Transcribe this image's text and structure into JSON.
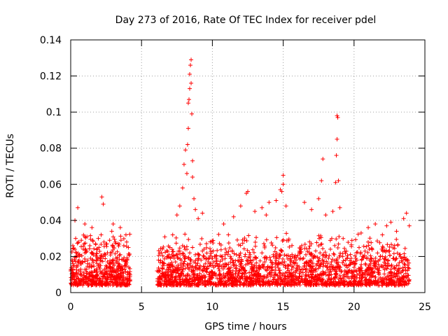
{
  "chart_data": {
    "type": "scatter",
    "title": "Day 273 of 2016, Rate Of TEC Index for receiver pdel",
    "xlabel": "GPS time / hours",
    "ylabel": "ROTI / TECUs",
    "xlim": [
      0,
      25
    ],
    "ylim": [
      0,
      0.14
    ],
    "xticks": [
      0,
      5,
      10,
      15,
      20,
      25
    ],
    "xtick_labels": [
      "0",
      "5",
      "10",
      "15",
      "20",
      "25"
    ],
    "yticks": [
      0,
      0.02,
      0.04,
      0.06,
      0.08,
      0.1,
      0.12,
      0.14
    ],
    "ytick_labels": [
      "0",
      "0.02",
      "0.04",
      "0.06",
      "0.08",
      "0.1",
      "0.12",
      "0.14"
    ],
    "grid": true,
    "marker": "+",
    "color": "#ff0000",
    "data_gap": [
      4.2,
      6.1
    ],
    "series": [
      {
        "name": "ROTI",
        "x": [
          0.0,
          0.1,
          0.2,
          0.3,
          0.4,
          0.5,
          0.6,
          0.7,
          0.8,
          0.9,
          1.0,
          1.1,
          1.2,
          1.3,
          1.4,
          1.5,
          1.6,
          1.7,
          1.8,
          1.9,
          2.0,
          2.1,
          2.2,
          2.3,
          2.4,
          2.5,
          2.6,
          2.7,
          2.8,
          2.9,
          3.0,
          3.1,
          3.2,
          3.3,
          3.4,
          3.5,
          3.6,
          3.7,
          3.8,
          3.9,
          4.0,
          4.1,
          0.05,
          0.15,
          0.25,
          0.35,
          0.45,
          0.55,
          0.65,
          0.75,
          0.85,
          0.95,
          1.05,
          1.15,
          1.25,
          1.35,
          1.45,
          1.55,
          1.65,
          1.75,
          1.85,
          1.95,
          2.05,
          2.15,
          2.25,
          2.35,
          2.45,
          2.55,
          2.65,
          2.75,
          2.85,
          2.95,
          3.05,
          3.15,
          3.25,
          3.35,
          3.45,
          3.55,
          3.65,
          3.75,
          3.85,
          3.95,
          4.05,
          0.3,
          0.5,
          1.0,
          1.5,
          2.2,
          2.3,
          2.9,
          3.0,
          3.5,
          3.9,
          6.1,
          6.2,
          6.3,
          6.4,
          6.5,
          6.6,
          6.7,
          6.8,
          6.9,
          7.0,
          7.1,
          7.2,
          7.3,
          7.4,
          7.5,
          7.6,
          7.7,
          7.8,
          7.9,
          8.0,
          8.1,
          8.2,
          8.3,
          8.4,
          8.5,
          8.6,
          8.7,
          8.8,
          8.9,
          9.0,
          9.1,
          9.2,
          9.3,
          9.4,
          9.5,
          9.6,
          9.7,
          9.8,
          9.9,
          10.0,
          6.15,
          6.35,
          6.55,
          6.75,
          6.95,
          7.15,
          7.35,
          7.55,
          7.75,
          7.95,
          8.15,
          8.35,
          8.55,
          8.75,
          8.95,
          9.15,
          9.35,
          9.55,
          9.75,
          9.95,
          7.2,
          7.5,
          7.7,
          7.9,
          8.0,
          8.1,
          8.2,
          8.25,
          8.3,
          8.3,
          8.35,
          8.4,
          8.4,
          8.45,
          8.5,
          8.5,
          8.55,
          8.6,
          8.6,
          8.7,
          8.8,
          9.0,
          9.3,
          10.1,
          10.3,
          10.5,
          10.7,
          10.9,
          11.1,
          11.3,
          11.5,
          11.7,
          11.9,
          12.1,
          12.3,
          12.5,
          12.7,
          12.9,
          13.1,
          13.3,
          13.5,
          13.7,
          13.9,
          14.1,
          14.3,
          14.5,
          14.7,
          14.9,
          15.1,
          15.3,
          15.5,
          15.7,
          15.9,
          10.2,
          10.6,
          11.0,
          11.4,
          11.8,
          12.2,
          12.6,
          13.0,
          13.4,
          13.8,
          14.2,
          14.6,
          15.0,
          15.4,
          15.8,
          10.8,
          11.5,
          12.0,
          12.4,
          12.5,
          13.0,
          13.5,
          13.8,
          14.0,
          14.5,
          14.8,
          14.9,
          15.0,
          15.0,
          15.2,
          16.0,
          16.2,
          16.4,
          16.6,
          16.8,
          17.0,
          17.2,
          17.4,
          17.6,
          17.8,
          18.0,
          18.2,
          18.4,
          18.6,
          18.8,
          19.0,
          19.2,
          19.4,
          19.6,
          19.8,
          16.1,
          16.5,
          16.9,
          17.3,
          17.7,
          18.1,
          18.5,
          18.9,
          19.3,
          19.7,
          16.5,
          17.0,
          17.5,
          17.7,
          17.8,
          18.0,
          18.5,
          18.7,
          18.75,
          18.8,
          18.8,
          18.85,
          18.9,
          19.0,
          20.0,
          20.2,
          20.4,
          20.6,
          20.8,
          21.0,
          21.2,
          21.4,
          21.6,
          21.8,
          22.0,
          22.2,
          22.4,
          22.6,
          22.8,
          23.0,
          23.2,
          23.4,
          23.6,
          23.8,
          20.1,
          20.5,
          20.9,
          21.3,
          21.7,
          22.1,
          22.5,
          22.9,
          23.3,
          23.7,
          20.5,
          21.0,
          21.5,
          22.0,
          22.3,
          22.6,
          23.0,
          23.5,
          23.7,
          23.9
        ],
        "y": [
          0.012,
          0.018,
          0.01,
          0.024,
          0.015,
          0.008,
          0.02,
          0.013,
          0.017,
          0.011,
          0.022,
          0.009,
          0.016,
          0.014,
          0.019,
          0.007,
          0.021,
          0.012,
          0.018,
          0.01,
          0.025,
          0.015,
          0.011,
          0.02,
          0.013,
          0.008,
          0.017,
          0.014,
          0.022,
          0.01,
          0.016,
          0.012,
          0.019,
          0.009,
          0.015,
          0.021,
          0.011,
          0.018,
          0.013,
          0.016,
          0.01,
          0.014,
          0.005,
          0.026,
          0.006,
          0.03,
          0.004,
          0.028,
          0.005,
          0.029,
          0.004,
          0.027,
          0.006,
          0.031,
          0.005,
          0.026,
          0.004,
          0.029,
          0.006,
          0.027,
          0.005,
          0.03,
          0.004,
          0.032,
          0.006,
          0.028,
          0.005,
          0.027,
          0.004,
          0.029,
          0.006,
          0.026,
          0.005,
          0.028,
          0.004,
          0.027,
          0.006,
          0.029,
          0.005,
          0.026,
          0.004,
          0.028,
          0.005,
          0.04,
          0.047,
          0.038,
          0.036,
          0.053,
          0.049,
          0.034,
          0.038,
          0.036,
          0.032,
          0.012,
          0.018,
          0.009,
          0.022,
          0.014,
          0.016,
          0.01,
          0.02,
          0.013,
          0.025,
          0.015,
          0.011,
          0.019,
          0.017,
          0.021,
          0.014,
          0.023,
          0.018,
          0.026,
          0.016,
          0.02,
          0.024,
          0.019,
          0.022,
          0.018,
          0.025,
          0.017,
          0.021,
          0.015,
          0.019,
          0.014,
          0.018,
          0.012,
          0.02,
          0.016,
          0.013,
          0.017,
          0.011,
          0.015,
          0.019,
          0.004,
          0.005,
          0.004,
          0.006,
          0.005,
          0.004,
          0.006,
          0.005,
          0.004,
          0.006,
          0.005,
          0.004,
          0.006,
          0.005,
          0.004,
          0.006,
          0.005,
          0.004,
          0.006,
          0.005,
          0.032,
          0.043,
          0.048,
          0.058,
          0.071,
          0.079,
          0.066,
          0.082,
          0.091,
          0.105,
          0.107,
          0.113,
          0.121,
          0.126,
          0.129,
          0.116,
          0.099,
          0.073,
          0.064,
          0.052,
          0.046,
          0.041,
          0.044,
          0.014,
          0.018,
          0.012,
          0.02,
          0.016,
          0.013,
          0.019,
          0.015,
          0.021,
          0.017,
          0.014,
          0.02,
          0.016,
          0.018,
          0.013,
          0.019,
          0.015,
          0.022,
          0.017,
          0.014,
          0.018,
          0.021,
          0.016,
          0.019,
          0.023,
          0.017,
          0.015,
          0.02,
          0.014,
          0.018,
          0.005,
          0.006,
          0.004,
          0.005,
          0.006,
          0.004,
          0.005,
          0.006,
          0.004,
          0.005,
          0.006,
          0.004,
          0.005,
          0.006,
          0.004,
          0.038,
          0.042,
          0.048,
          0.055,
          0.056,
          0.045,
          0.047,
          0.043,
          0.05,
          0.051,
          0.057,
          0.056,
          0.065,
          0.06,
          0.048,
          0.015,
          0.019,
          0.013,
          0.021,
          0.017,
          0.014,
          0.02,
          0.016,
          0.022,
          0.018,
          0.015,
          0.019,
          0.017,
          0.021,
          0.016,
          0.014,
          0.02,
          0.018,
          0.015,
          0.019,
          0.005,
          0.006,
          0.004,
          0.005,
          0.006,
          0.004,
          0.005,
          0.006,
          0.004,
          0.005,
          0.05,
          0.046,
          0.052,
          0.062,
          0.074,
          0.043,
          0.045,
          0.061,
          0.076,
          0.085,
          0.098,
          0.097,
          0.062,
          0.047,
          0.014,
          0.018,
          0.012,
          0.02,
          0.016,
          0.013,
          0.019,
          0.015,
          0.017,
          0.014,
          0.02,
          0.016,
          0.018,
          0.013,
          0.019,
          0.015,
          0.021,
          0.017,
          0.014,
          0.018,
          0.005,
          0.004,
          0.006,
          0.005,
          0.004,
          0.006,
          0.005,
          0.004,
          0.006,
          0.005,
          0.033,
          0.036,
          0.038,
          0.032,
          0.037,
          0.039,
          0.034,
          0.041,
          0.044,
          0.037
        ]
      }
    ]
  }
}
